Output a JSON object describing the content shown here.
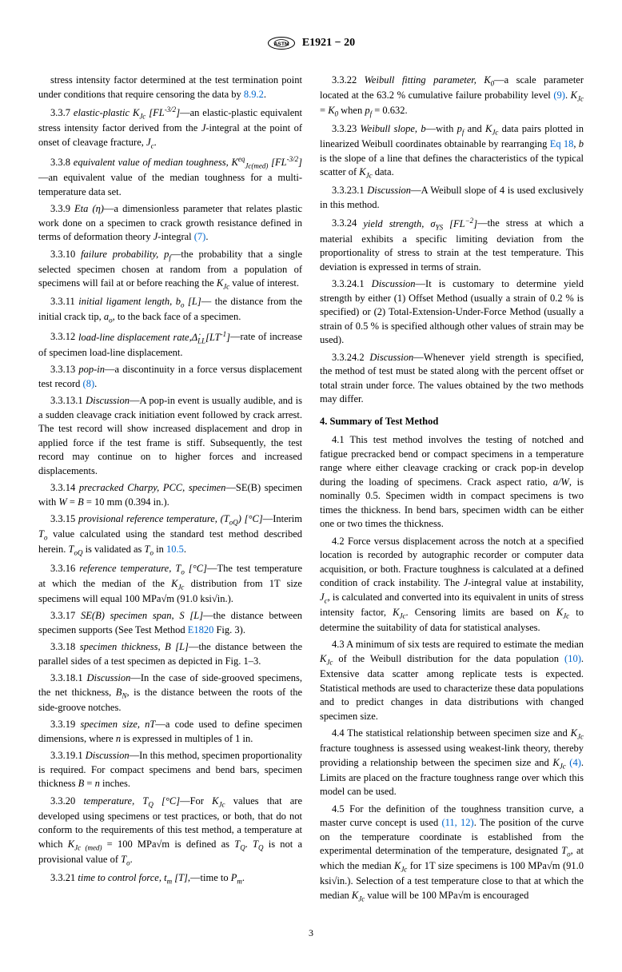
{
  "header": {
    "standard_id": "E1921 − 20"
  },
  "page_number": "3",
  "section4_title": "4. Summary of Test Method",
  "p": {
    "intro": "stress intensity factor determined at the test termination point under conditions that require censoring the data by ",
    "intro_link": "8.9.2",
    "intro_end": ".",
    "337": "—an elastic-plastic equivalent stress intensity factor derived from the <i>J</i>-integral at the point of onset of cleavage fracture, <i>J<sub>c</sub></i>.",
    "338": "—an equivalent value of the median toughness for a multi-temperature data set.",
    "339": "3.3.9 <i>Eta (η)</i>—a dimensionless parameter that relates plastic work done on a specimen to crack growth resistance defined in terms of deformation theory <i>J</i>-integral ",
    "339_link": "(7)",
    "3310": "3.3.10 <i>failure probability, p<sub>f</sub></i>—the probability that a single selected specimen chosen at random from a population of specimens will fail at or before reaching the <i>K<sub>Jc</sub></i> value of interest.",
    "3311": "3.3.11 <i>initial ligament length, b<sub>o</sub> [L]</i>— the distance from the initial crack tip, <i>a<sub>o</sub></i>, to the back face of a specimen.",
    "3312": "3.3.12 <i>load-line displacement rate,Δ̇<sub>LL</sub>[LT<sup>-1</sup>]</i>—rate of increase of specimen load-line displacement.",
    "3313": "3.3.13 <i>pop-in</i>—a discontinuity in a force versus displacement test record ",
    "3313_link": "(8)",
    "33131": "3.3.13.1 <i>Discussion</i>—A pop-in event is usually audible, and is a sudden cleavage crack initiation event followed by crack arrest. The test record will show increased displacement and drop in applied force if the test frame is stiff. Subsequently, the test record may continue on to higher forces and increased displacements.",
    "3314": "3.3.14 <i>precracked Charpy, PCC, specimen</i>—SE(B) specimen with <i>W</i> = <i>B</i> = 10 mm (0.394 in.).",
    "3315a": "3.3.15 <i>provisional reference temperature, (T<sub>oQ</sub>) [°C]</i>—Interim <i>T<sub>o</sub></i> value calculated using the standard test method described herein. <i>T<sub>oQ</sub></i> is validated as <i>T<sub>o</sub></i> in ",
    "3315_link": "10.5",
    "3316": "3.3.16 <i>reference temperature, T<sub>o</sub> [°C]</i>—The test temperature at which the median of the <i>K<sub>Jc</sub></i> distribution from 1T size specimens will equal 100 MPa√m (91.0 ksi√in.).",
    "3317a": "3.3.17 <i>SE(B) specimen span, S [L]</i>—the distance between specimen supports (See Test Method ",
    "3317_link": "E1820",
    "3317b": " Fig. 3).",
    "3318": "3.3.18 <i>specimen thickness, B [L]</i>—the distance between the parallel sides of a test specimen as depicted in Fig. 1–3.",
    "33181": "3.3.18.1 <i>Discussion</i>—In the case of side-grooved specimens, the net thickness, <i>B<sub>N</sub></i>, is the distance between the roots of the side-groove notches.",
    "3319": "3.3.19 <i>specimen size, nT</i>—a code used to define specimen dimensions, where <i>n</i> is expressed in multiples of 1 in.",
    "33191": "3.3.19.1 <i>Discussion</i>—In this method, specimen proportionality is required. For compact specimens and bend bars, specimen thickness <i>B</i> = <i>n</i> inches.",
    "3320": "3.3.20 <i>temperature, T<sub>Q</sub> [°C]</i>—For <i>K<sub>Jc</sub></i> values that are developed using specimens or test practices, or both, that do not conform to the requirements of this test method, a temperature at which <i>K<sub>Jc (med)</sub></i> = 100 MPa√m is defined as <i>T<sub>Q</sub></i>. <i>T<sub>Q</sub></i> is not a provisional value of <i>T<sub>o</sub></i>.",
    "3321": "3.3.21 <i>time to control force, t<sub>m</sub> [T],</i>—time to <i>P<sub>m</sub></i>.",
    "3322a": "3.3.22 <i>Weibull fitting parameter, K<sub>0</sub></i>—a scale parameter located at the 63.2 % cumulative failure probability level ",
    "3322_link": "(9)",
    "3322b": ". <i>K<sub>Jc</sub></i> = <i>K<sub>0</sub></i> when <i>p<sub>f</sub></i> = 0.632.",
    "3323a": "3.3.23 <i>Weibull slope, b</i>—with <i>p<sub>f</sub></i> and <i>K<sub>Jc</sub></i> data pairs plotted in linearized Weibull coordinates obtainable by rearranging ",
    "3323_link": "Eq 18",
    "3323b": ", <i>b</i> is the slope of a line that defines the characteristics of the typical scatter of <i>K<sub>Jc</sub></i> data.",
    "33231": "3.3.23.1 <i>Discussion</i>—A Weibull slope of 4 is used exclusively in this method.",
    "3324": "3.3.24 <i>yield strength, σ<sub>YS</sub> [FL<sup>−2</sup>]</i>—the stress at which a material exhibits a specific limiting deviation from the proportionality of stress to strain at the test temperature. This deviation is expressed in terms of strain.",
    "33241": "3.3.24.1 <i>Discussion</i>—It is customary to determine yield strength by either (1) Offset Method (usually a strain of 0.2 % is specified) or (2) Total-Extension-Under-Force Method (usually a strain of 0.5 % is specified although other values of strain may be used).",
    "33242": "3.3.24.2 <i>Discussion</i>—Whenever yield strength is specified, the method of test must be stated along with the percent offset or total strain under force. The values obtained by the two methods may differ.",
    "41": "4.1 This test method involves the testing of notched and fatigue precracked bend or compact specimens in a temperature range where either cleavage cracking or crack pop-in develop during the loading of specimens. Crack aspect ratio, <i>a/W</i>, is nominally 0.5. Specimen width in compact specimens is two times the thickness. In bend bars, specimen width can be either one or two times the thickness.",
    "42": "4.2 Force versus displacement across the notch at a specified location is recorded by autographic recorder or computer data acquisition, or both. Fracture toughness is calculated at a defined condition of crack instability. The <i>J</i>-integral value at instability, <i>J<sub>c</sub></i>, is calculated and converted into its equivalent in units of stress intensity factor, <i>K<sub>Jc</sub></i>. Censoring limits are based on <i>K<sub>Jc</sub></i> to determine the suitability of data for statistical analyses.",
    "43a": "4.3 A minimum of six tests are required to estimate the median <i>K<sub>Jc</sub></i> of the Weibull distribution for the data population ",
    "43_link": "(10)",
    "43b": ". Extensive data scatter among replicate tests is expected. Statistical methods are used to characterize these data populations and to predict changes in data distributions with changed specimen size.",
    "44a": "4.4 The statistical relationship between specimen size and <i>K<sub>Jc</sub></i> fracture toughness is assessed using weakest-link theory, thereby providing a relationship between the specimen size and <i>K<sub>Jc</sub></i> ",
    "44_link": "(4)",
    "44b": ". Limits are placed on the fracture toughness range over which this model can be used.",
    "45a": "4.5 For the definition of the toughness transition curve, a master curve concept is used ",
    "45_link": "(11, 12)",
    "45b": ". The position of the curve on the temperature coordinate is established from the experimental determination of the temperature, designated <i>T<sub>o</sub></i>, at which the median <i>K<sub>Jc</sub></i> for 1T size specimens is 100 MPa√m (91.0 ksi√in.). Selection of a test temperature close to that at which the median <i>K<sub>Jc</sub></i> value will be 100 MPa√m is encouraged"
  },
  "colors": {
    "link": "#0066cc",
    "text": "#000000",
    "bg": "#ffffff"
  }
}
